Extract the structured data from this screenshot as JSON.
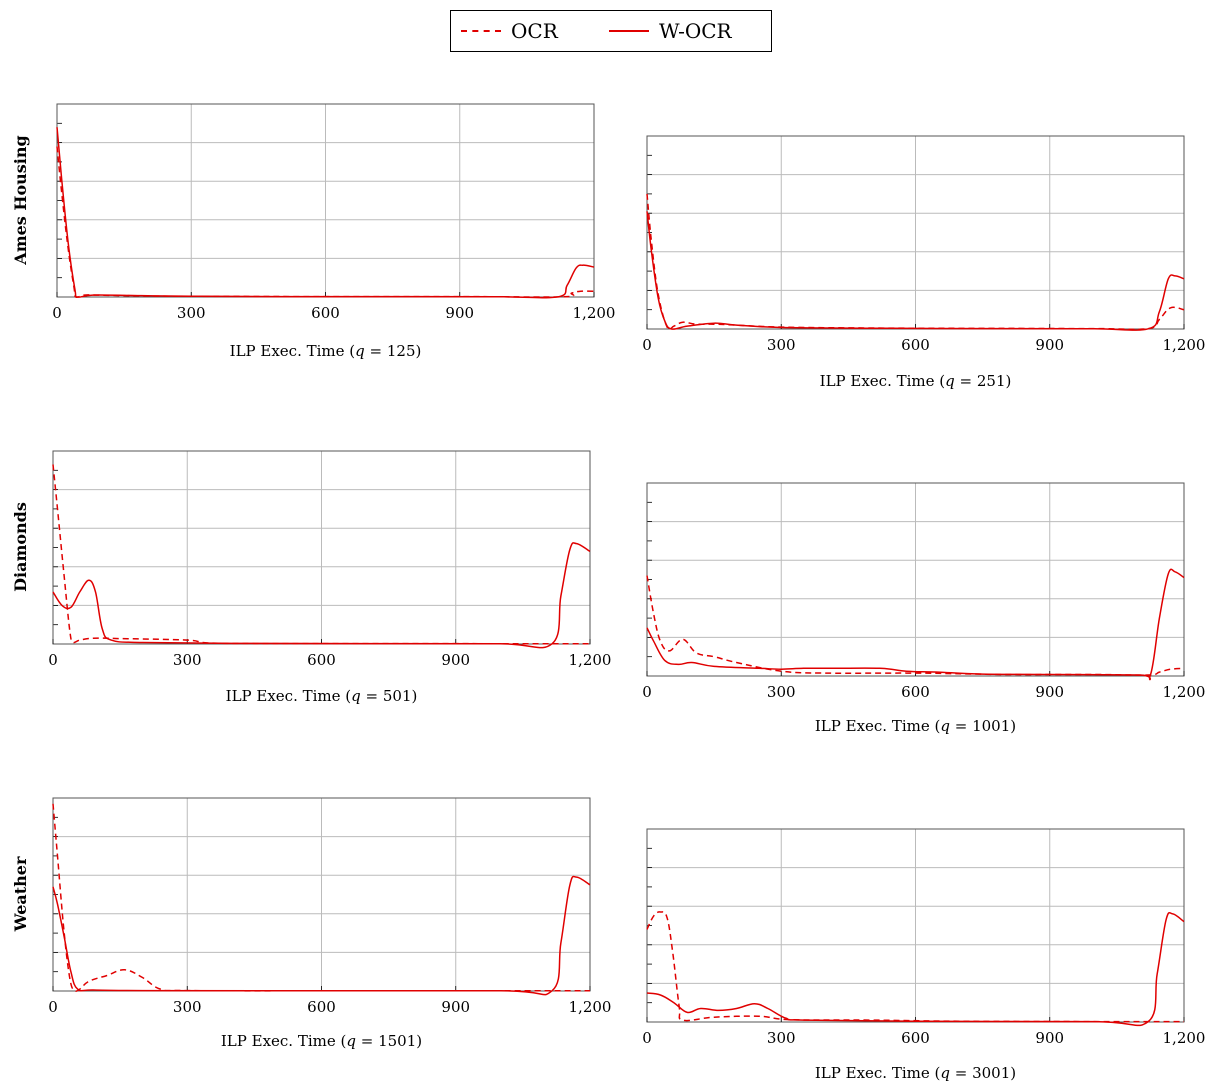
{
  "legend": {
    "items": [
      {
        "label": "OCR",
        "style": "dashed",
        "color": "#e00000"
      },
      {
        "label": "W-OCR",
        "style": "solid",
        "color": "#e00000"
      }
    ]
  },
  "row_labels": [
    "Ames Housing",
    "Diamonds",
    "Weather"
  ],
  "colors": {
    "series": "#e00000",
    "grid": "#bbbbbb",
    "axis": "#000000"
  },
  "chart_data": [
    {
      "type": "line",
      "row_label": "Ames Housing",
      "xlabel": "ILP Exec. Time (q = 125)",
      "xlabel_parts": [
        "ILP Exec. Time (",
        "q",
        " = 125)"
      ],
      "xlim": [
        0,
        1200
      ],
      "ylim": [
        0,
        1
      ],
      "xticks": [
        0,
        300,
        600,
        900,
        1200
      ],
      "xtick_labels": [
        "0",
        "300",
        "600",
        "900",
        "1,200"
      ],
      "yticks": [
        0.2,
        0.4,
        0.6,
        0.8,
        1.0
      ],
      "grid": true,
      "series": [
        {
          "name": "OCR",
          "style": "dashed",
          "points": [
            [
              0,
              0.78
            ],
            [
              10,
              0.55
            ],
            [
              25,
              0.25
            ],
            [
              38,
              0.05
            ],
            [
              42,
              0
            ],
            [
              60,
              0.01
            ],
            [
              90,
              0.01
            ],
            [
              200,
              0.005
            ],
            [
              400,
              0.003
            ],
            [
              600,
              0.002
            ],
            [
              900,
              0.002
            ],
            [
              1130,
              0.001
            ],
            [
              1150,
              0.02
            ],
            [
              1170,
              0.03
            ],
            [
              1200,
              0.03
            ]
          ]
        },
        {
          "name": "W-OCR",
          "style": "solid",
          "points": [
            [
              0,
              0.88
            ],
            [
              10,
              0.62
            ],
            [
              25,
              0.28
            ],
            [
              40,
              0.04
            ],
            [
              46,
              0
            ],
            [
              80,
              0.01
            ],
            [
              180,
              0.007
            ],
            [
              300,
              0.004
            ],
            [
              500,
              0.002
            ],
            [
              800,
              0.002
            ],
            [
              1000,
              0.001
            ],
            [
              1120,
              0.001
            ],
            [
              1140,
              0.06
            ],
            [
              1160,
              0.15
            ],
            [
              1175,
              0.165
            ],
            [
              1200,
              0.155
            ]
          ]
        }
      ]
    },
    {
      "type": "line",
      "row_label": "Ames Housing",
      "xlabel": "ILP Exec. Time (q = 251)",
      "xlabel_parts": [
        "ILP Exec. Time (",
        "q",
        " = 251)"
      ],
      "xlim": [
        0,
        1200
      ],
      "ylim": [
        0,
        1
      ],
      "xticks": [
        0,
        300,
        600,
        900,
        1200
      ],
      "xtick_labels": [
        "0",
        "300",
        "600",
        "900",
        "1,200"
      ],
      "yticks": [
        0.2,
        0.4,
        0.6,
        0.8,
        1.0
      ],
      "grid": true,
      "series": [
        {
          "name": "OCR",
          "style": "dashed",
          "points": [
            [
              0,
              0.7
            ],
            [
              10,
              0.45
            ],
            [
              25,
              0.18
            ],
            [
              45,
              0.01
            ],
            [
              60,
              0.015
            ],
            [
              80,
              0.035
            ],
            [
              110,
              0.025
            ],
            [
              150,
              0.025
            ],
            [
              200,
              0.02
            ],
            [
              300,
              0.01
            ],
            [
              500,
              0.005
            ],
            [
              800,
              0.003
            ],
            [
              1000,
              0.002
            ],
            [
              1120,
              0.002
            ],
            [
              1145,
              0.05
            ],
            [
              1170,
              0.11
            ],
            [
              1200,
              0.1
            ]
          ]
        },
        {
          "name": "W-OCR",
          "style": "solid",
          "points": [
            [
              0,
              0.61
            ],
            [
              10,
              0.4
            ],
            [
              25,
              0.16
            ],
            [
              40,
              0.04
            ],
            [
              55,
              0
            ],
            [
              90,
              0.015
            ],
            [
              150,
              0.03
            ],
            [
              200,
              0.02
            ],
            [
              300,
              0.008
            ],
            [
              500,
              0.004
            ],
            [
              800,
              0.002
            ],
            [
              1000,
              0.001
            ],
            [
              1120,
              0.001
            ],
            [
              1145,
              0.09
            ],
            [
              1165,
              0.26
            ],
            [
              1180,
              0.275
            ],
            [
              1200,
              0.26
            ]
          ]
        }
      ]
    },
    {
      "type": "line",
      "row_label": "Diamonds",
      "xlabel": "ILP Exec. Time (q = 501)",
      "xlabel_parts": [
        "ILP Exec. Time (",
        "q",
        " = 501)"
      ],
      "xlim": [
        0,
        1200
      ],
      "ylim": [
        0,
        1
      ],
      "xticks": [
        0,
        300,
        600,
        900,
        1200
      ],
      "xtick_labels": [
        "0",
        "300",
        "600",
        "900",
        "1,200"
      ],
      "yticks": [
        0.2,
        0.4,
        0.6,
        0.8,
        1.0
      ],
      "grid": true,
      "series": [
        {
          "name": "OCR",
          "style": "dashed",
          "points": [
            [
              0,
              0.93
            ],
            [
              10,
              0.7
            ],
            [
              25,
              0.35
            ],
            [
              38,
              0.06
            ],
            [
              45,
              0.01
            ],
            [
              60,
              0.02
            ],
            [
              90,
              0.03
            ],
            [
              150,
              0.028
            ],
            [
              300,
              0.02
            ],
            [
              350,
              0.005
            ],
            [
              500,
              0.002
            ],
            [
              800,
              0.002
            ],
            [
              1100,
              0.001
            ],
            [
              1200,
              0.001
            ]
          ]
        },
        {
          "name": "W-OCR",
          "style": "solid",
          "points": [
            [
              0,
              0.27
            ],
            [
              20,
              0.2
            ],
            [
              40,
              0.19
            ],
            [
              60,
              0.27
            ],
            [
              80,
              0.33
            ],
            [
              95,
              0.27
            ],
            [
              110,
              0.08
            ],
            [
              130,
              0.02
            ],
            [
              200,
              0.008
            ],
            [
              400,
              0.003
            ],
            [
              700,
              0.002
            ],
            [
              1000,
              0.001
            ],
            [
              1115,
              0.001
            ],
            [
              1135,
              0.25
            ],
            [
              1155,
              0.49
            ],
            [
              1170,
              0.52
            ],
            [
              1200,
              0.48
            ]
          ]
        }
      ]
    },
    {
      "type": "line",
      "row_label": "Diamonds",
      "xlabel": "ILP Exec. Time (q = 1001)",
      "xlabel_parts": [
        "ILP Exec. Time (",
        "q",
        " = 1001)"
      ],
      "xlim": [
        0,
        1200
      ],
      "ylim": [
        0,
        1
      ],
      "xticks": [
        0,
        300,
        600,
        900,
        1200
      ],
      "xtick_labels": [
        "0",
        "300",
        "600",
        "900",
        "1,200"
      ],
      "yticks": [
        0.2,
        0.4,
        0.6,
        0.8,
        1.0
      ],
      "grid": true,
      "series": [
        {
          "name": "OCR",
          "style": "dashed",
          "points": [
            [
              0,
              0.52
            ],
            [
              15,
              0.32
            ],
            [
              30,
              0.18
            ],
            [
              50,
              0.13
            ],
            [
              80,
              0.19
            ],
            [
              110,
              0.12
            ],
            [
              150,
              0.1
            ],
            [
              200,
              0.07
            ],
            [
              300,
              0.025
            ],
            [
              400,
              0.015
            ],
            [
              600,
              0.015
            ],
            [
              800,
              0.008
            ],
            [
              1000,
              0.008
            ],
            [
              1120,
              0.005
            ],
            [
              1145,
              0.02
            ],
            [
              1170,
              0.035
            ],
            [
              1200,
              0.04
            ]
          ]
        },
        {
          "name": "W-OCR",
          "style": "solid",
          "points": [
            [
              0,
              0.25
            ],
            [
              15,
              0.18
            ],
            [
              40,
              0.08
            ],
            [
              70,
              0.06
            ],
            [
              100,
              0.07
            ],
            [
              150,
              0.05
            ],
            [
              250,
              0.04
            ],
            [
              300,
              0.035
            ],
            [
              350,
              0.04
            ],
            [
              420,
              0.04
            ],
            [
              520,
              0.04
            ],
            [
              580,
              0.025
            ],
            [
              650,
              0.02
            ],
            [
              750,
              0.01
            ],
            [
              900,
              0.008
            ],
            [
              1100,
              0.005
            ],
            [
              1125,
              0.005
            ],
            [
              1145,
              0.3
            ],
            [
              1165,
              0.53
            ],
            [
              1180,
              0.54
            ],
            [
              1200,
              0.51
            ]
          ]
        }
      ]
    },
    {
      "type": "line",
      "row_label": "Weather",
      "xlabel": "ILP Exec. Time (q = 1501)",
      "xlabel_parts": [
        "ILP Exec. Time (",
        "q",
        " = 1501)"
      ],
      "xlim": [
        0,
        1200
      ],
      "ylim": [
        0,
        1
      ],
      "xticks": [
        0,
        300,
        600,
        900,
        1200
      ],
      "xtick_labels": [
        "0",
        "300",
        "600",
        "900",
        "1,200"
      ],
      "yticks": [
        0.2,
        0.4,
        0.6,
        0.8,
        1.0
      ],
      "grid": true,
      "series": [
        {
          "name": "OCR",
          "style": "dashed",
          "points": [
            [
              0,
              0.97
            ],
            [
              10,
              0.7
            ],
            [
              25,
              0.3
            ],
            [
              38,
              0.06
            ],
            [
              48,
              0.003
            ],
            [
              60,
              0.01
            ],
            [
              80,
              0.05
            ],
            [
              120,
              0.08
            ],
            [
              160,
              0.11
            ],
            [
              200,
              0.07
            ],
            [
              240,
              0.01
            ],
            [
              300,
              0.002
            ],
            [
              600,
              0.001
            ],
            [
              1100,
              0.001
            ],
            [
              1200,
              0.001
            ]
          ]
        },
        {
          "name": "W-OCR",
          "style": "solid",
          "points": [
            [
              0,
              0.54
            ],
            [
              10,
              0.45
            ],
            [
              25,
              0.28
            ],
            [
              40,
              0.1
            ],
            [
              55,
              0.01
            ],
            [
              90,
              0.005
            ],
            [
              200,
              0.002
            ],
            [
              500,
              0.001
            ],
            [
              1000,
              0.001
            ],
            [
              1115,
              0.001
            ],
            [
              1135,
              0.25
            ],
            [
              1155,
              0.55
            ],
            [
              1170,
              0.59
            ],
            [
              1200,
              0.55
            ]
          ]
        }
      ]
    },
    {
      "type": "line",
      "row_label": "Weather",
      "xlabel": "ILP Exec. Time (q = 3001)",
      "xlabel_parts": [
        "ILP Exec. Time (",
        "q",
        " = 3001)"
      ],
      "xlim": [
        0,
        1200
      ],
      "ylim": [
        0,
        1
      ],
      "xticks": [
        0,
        300,
        600,
        900,
        1200
      ],
      "xtick_labels": [
        "0",
        "300",
        "600",
        "900",
        "1,200"
      ],
      "yticks": [
        0.2,
        0.4,
        0.6,
        0.8,
        1.0
      ],
      "grid": true,
      "series": [
        {
          "name": "OCR",
          "style": "dashed",
          "points": [
            [
              0,
              0.48
            ],
            [
              15,
              0.55
            ],
            [
              30,
              0.57
            ],
            [
              45,
              0.54
            ],
            [
              58,
              0.35
            ],
            [
              72,
              0.08
            ],
            [
              80,
              0.01
            ],
            [
              150,
              0.025
            ],
            [
              250,
              0.03
            ],
            [
              320,
              0.012
            ],
            [
              500,
              0.01
            ],
            [
              700,
              0.004
            ],
            [
              1000,
              0.002
            ],
            [
              1120,
              0.002
            ],
            [
              1200,
              0.002
            ]
          ]
        },
        {
          "name": "W-OCR",
          "style": "solid",
          "points": [
            [
              0,
              0.15
            ],
            [
              30,
              0.14
            ],
            [
              60,
              0.1
            ],
            [
              90,
              0.05
            ],
            [
              120,
              0.07
            ],
            [
              160,
              0.06
            ],
            [
              200,
              0.07
            ],
            [
              240,
              0.095
            ],
            [
              270,
              0.07
            ],
            [
              310,
              0.02
            ],
            [
              350,
              0.01
            ],
            [
              600,
              0.004
            ],
            [
              1000,
              0.002
            ],
            [
              1120,
              0.002
            ],
            [
              1140,
              0.25
            ],
            [
              1160,
              0.53
            ],
            [
              1175,
              0.56
            ],
            [
              1200,
              0.52
            ]
          ]
        }
      ]
    }
  ]
}
